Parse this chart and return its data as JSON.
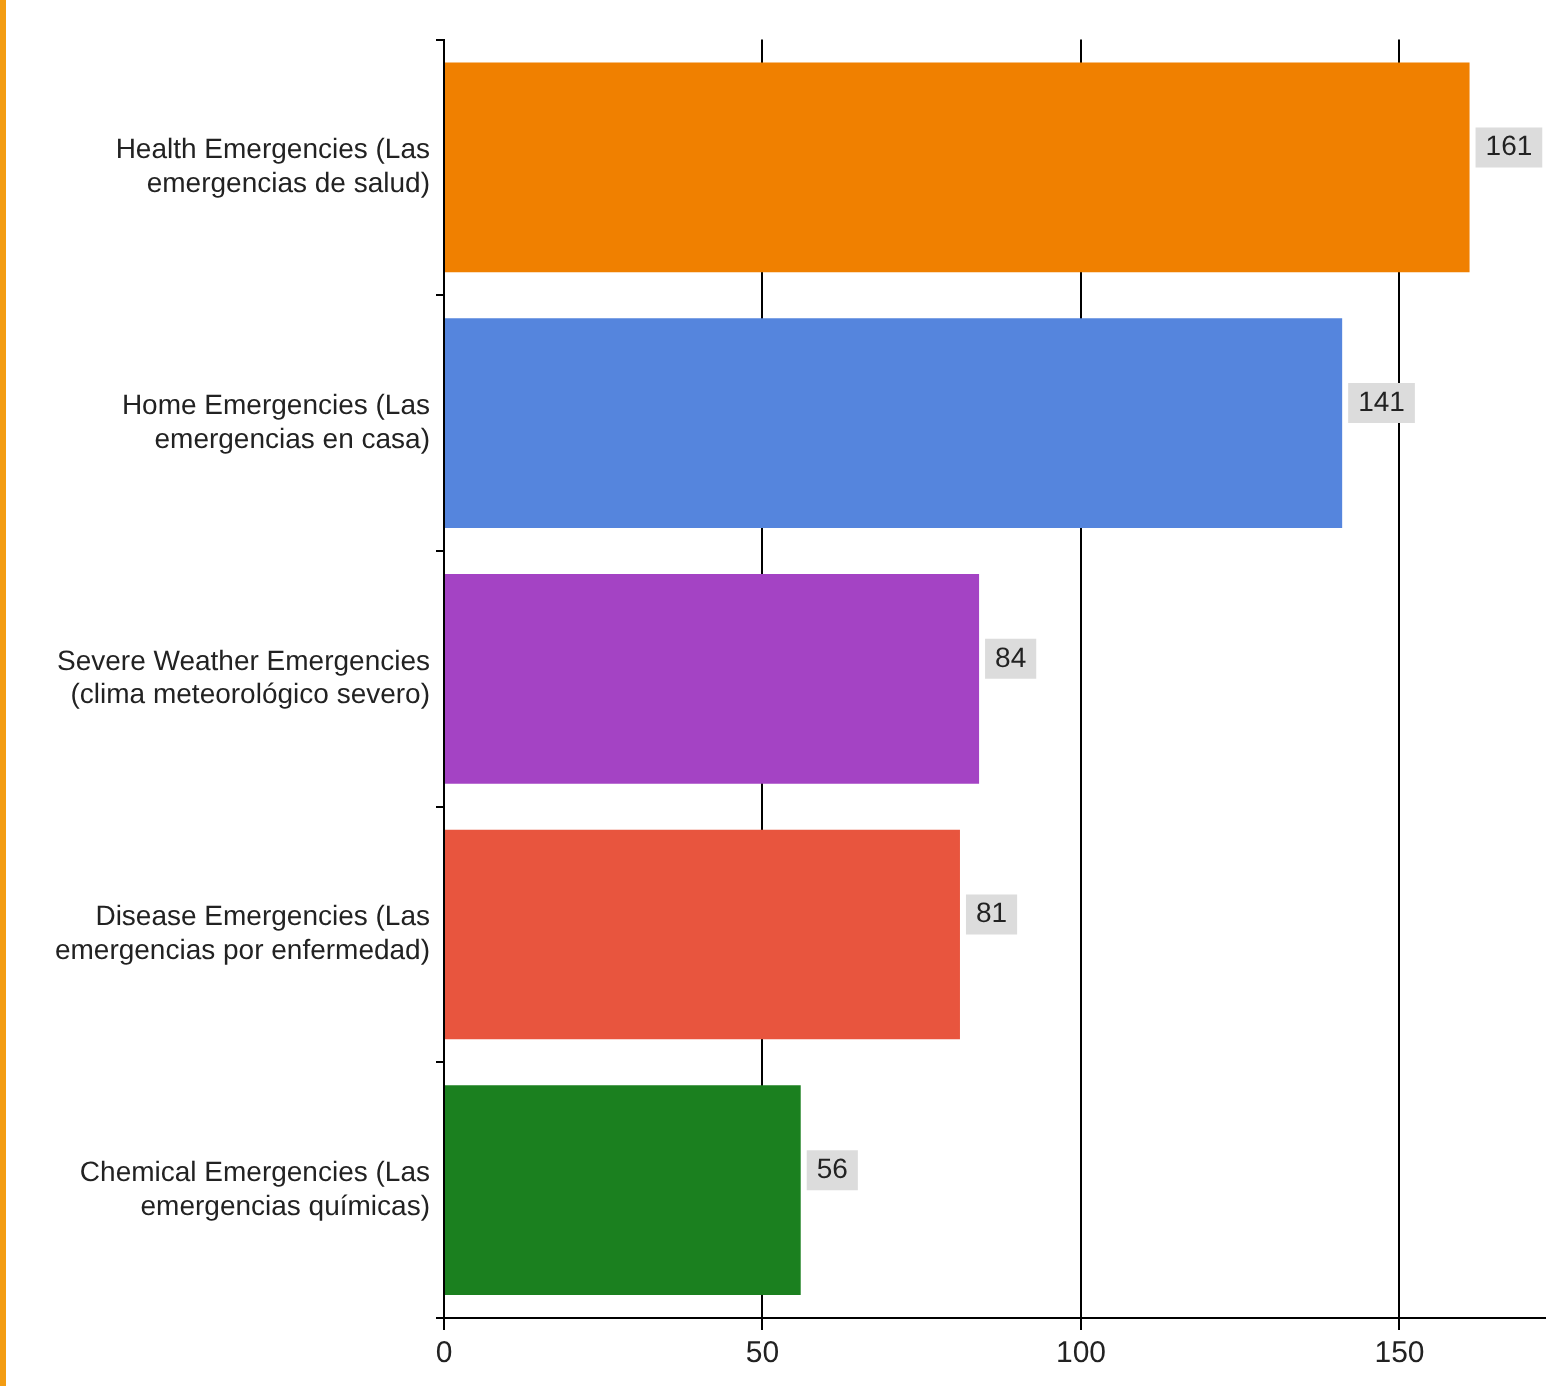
{
  "chart_data": {
    "type": "bar",
    "orientation": "horizontal",
    "categories": [
      "Health Emergencies (Las emergencias de salud)",
      "Home Emergencies (Las emergencias en casa)",
      "Severe Weather Emergencies (clima meteorológico severo)",
      "Disease Emergencies (Las emergencias por enfermedad)",
      "Chemical Emergencies (Las emergencias químicas)"
    ],
    "values": [
      161,
      141,
      84,
      81,
      56
    ],
    "colors": [
      "#f08000",
      "#5585dd",
      "#a443c4",
      "#e8553e",
      "#1b801f"
    ],
    "xlim": [
      0,
      173
    ],
    "xticks": [
      0,
      50,
      100,
      150
    ],
    "grid": "x",
    "data_labels": true
  }
}
